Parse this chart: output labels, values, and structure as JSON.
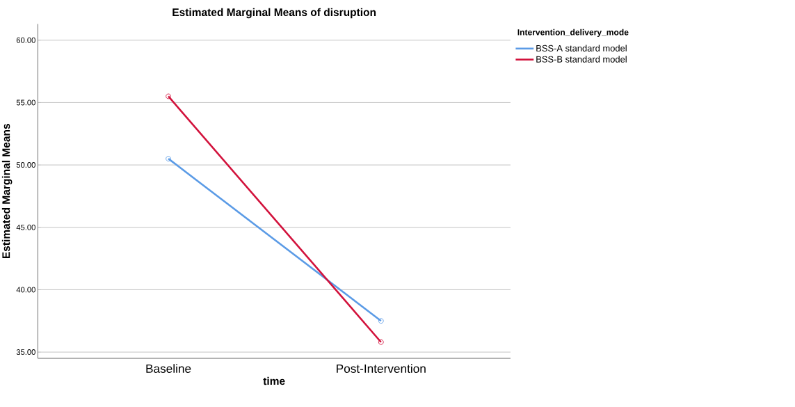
{
  "chart_data": {
    "type": "line",
    "title": "Estimated Marginal Means of disruption",
    "xlabel": "time",
    "ylabel": "Estimated Marginal Means",
    "legend_title": "Intervention_delivery_mode",
    "categories": [
      "Baseline",
      "Post-Intervention"
    ],
    "series": [
      {
        "name": "BSS-A standard model",
        "color": "#5b9be6",
        "values": [
          50.5,
          37.5
        ]
      },
      {
        "name": "BSS-B standard model",
        "color": "#d2123c",
        "values": [
          55.5,
          35.8
        ]
      }
    ],
    "ylim": [
      34.5,
      61.3
    ],
    "yticks": [
      {
        "value": 35,
        "label": "35.00"
      },
      {
        "value": 40,
        "label": "40.00"
      },
      {
        "value": 45,
        "label": "45.00"
      },
      {
        "value": 50,
        "label": "50.00"
      },
      {
        "value": 55,
        "label": "55.00"
      },
      {
        "value": 60,
        "label": "60.00"
      }
    ],
    "grid": "y",
    "legend": "top right",
    "marker": "circle",
    "line_style": "solid"
  }
}
